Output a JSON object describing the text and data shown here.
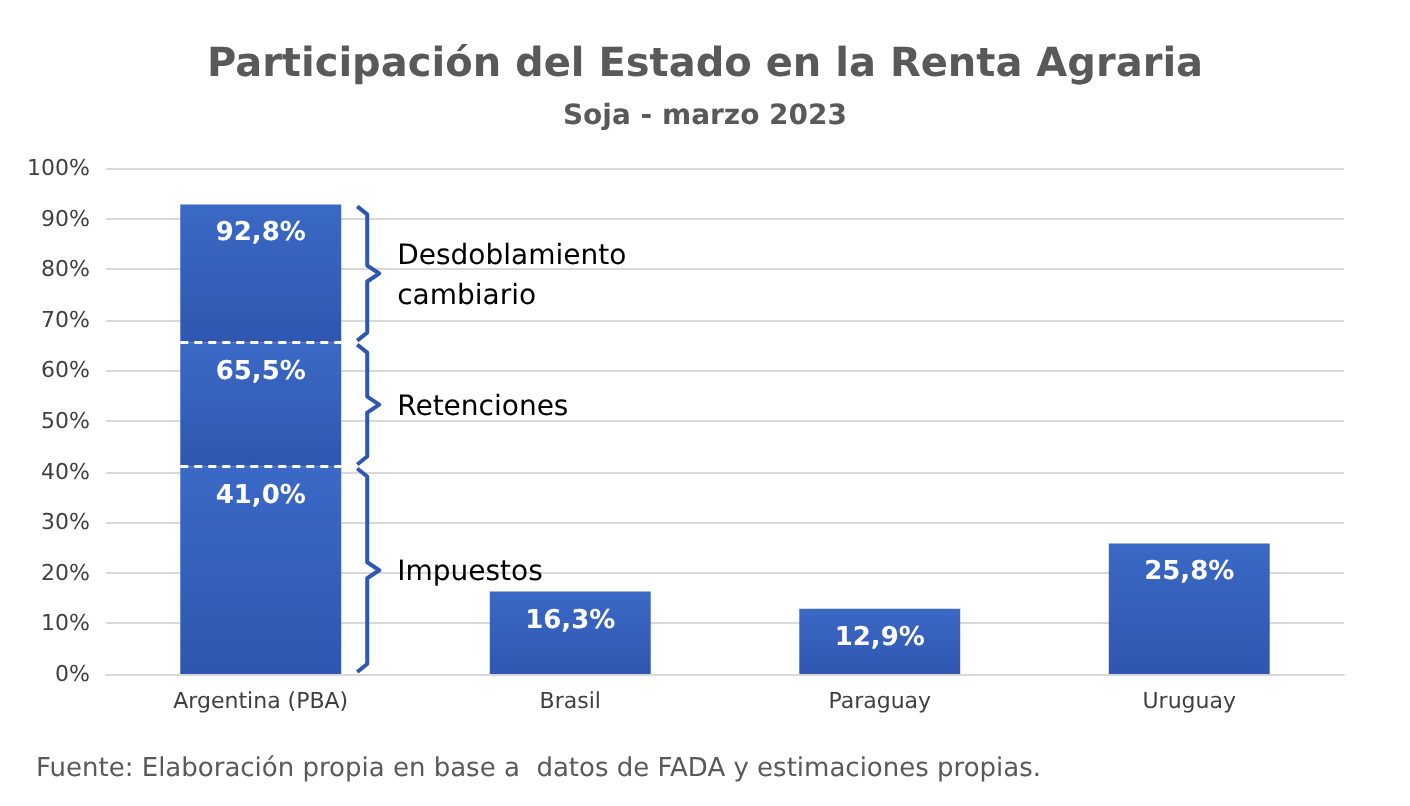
{
  "chart_data": {
    "type": "bar",
    "title": "Participación del Estado en la Renta Agraria",
    "subtitle": "Soja - marzo 2023",
    "categories": [
      "Argentina (PBA)",
      "Brasil",
      "Paraguay",
      "Uruguay"
    ],
    "stacked": true,
    "series": [
      {
        "name": "Impuestos",
        "color": "#3b69c6",
        "values": [
          41.0,
          16.3,
          12.9,
          25.8
        ],
        "value_labels": [
          "41,0%",
          "16,3%",
          "12,9%",
          "25,8%"
        ]
      },
      {
        "name": "Retenciones",
        "color": "#3b69c6",
        "values": [
          24.5,
          null,
          null,
          null
        ]
      },
      {
        "name": "Desdoblamiento cambiario",
        "color": "#3b69c6",
        "values": [
          27.3,
          null,
          null,
          null
        ]
      }
    ],
    "ylim": [
      0,
      100
    ],
    "yticks": [
      {
        "value": 0,
        "label": "0%"
      },
      {
        "value": 10,
        "label": "10%"
      },
      {
        "value": 20,
        "label": "20%"
      },
      {
        "value": 30,
        "label": "30%"
      },
      {
        "value": 40,
        "label": "40%"
      },
      {
        "value": 50,
        "label": "50%"
      },
      {
        "value": 60,
        "label": "60%"
      },
      {
        "value": 70,
        "label": "70%"
      },
      {
        "value": 80,
        "label": "80%"
      },
      {
        "value": 90,
        "label": "90%"
      },
      {
        "value": 100,
        "label": "100%"
      }
    ],
    "grid": "y",
    "annotations": [
      {
        "text": "65,5%",
        "x": "Argentina (PBA)",
        "y": 65.5
      },
      {
        "text": "92,8%",
        "x": "Argentina (PBA)",
        "y": 92.8
      },
      "Fuente: Elaboración propia en base a  datos de FADA y estimaciones propias."
    ]
  }
}
